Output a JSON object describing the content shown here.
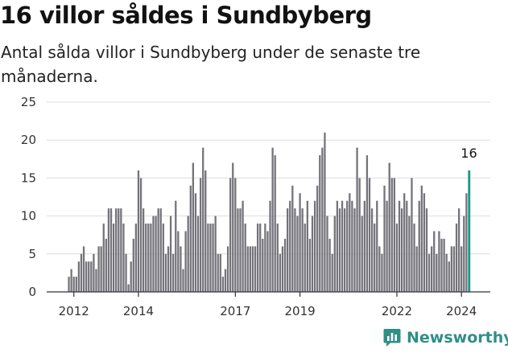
{
  "chart_data": {
    "type": "bar",
    "title": "16 villor såldes i Sundbyberg",
    "subtitle": "Antal sålda villor i Sundbyberg under de senaste tre månaderna.",
    "xlabel": "",
    "ylabel": "",
    "ylim": [
      0,
      25
    ],
    "yticks": [
      "0",
      "5",
      "10",
      "15",
      "20",
      "25"
    ],
    "ytick_values": [
      0,
      5,
      10,
      15,
      20,
      25
    ],
    "xticks": [
      "2012",
      "2014",
      "2017",
      "2019",
      "2022",
      "2024"
    ],
    "xtick_index": [
      2,
      28,
      67,
      93,
      132,
      158
    ],
    "grid": true,
    "start": "2012-01",
    "values": [
      2,
      3,
      2,
      2,
      4,
      5,
      6,
      4,
      4,
      4,
      5,
      3,
      6,
      6,
      9,
      7,
      11,
      11,
      9,
      11,
      11,
      11,
      9,
      5,
      1,
      4,
      7,
      9,
      16,
      15,
      11,
      9,
      9,
      9,
      10,
      10,
      11,
      11,
      9,
      5,
      6,
      10,
      5,
      12,
      8,
      6,
      3,
      8,
      10,
      14,
      17,
      13,
      10,
      15,
      19,
      16,
      9,
      9,
      9,
      10,
      5,
      5,
      2,
      3,
      6,
      15,
      17,
      15,
      11,
      11,
      12,
      9,
      6,
      6,
      6,
      6,
      9,
      9,
      7,
      9,
      8,
      12,
      19,
      18,
      9,
      5,
      6,
      7,
      11,
      12,
      14,
      11,
      10,
      13,
      11,
      9,
      12,
      7,
      10,
      12,
      14,
      18,
      19,
      21,
      10,
      7,
      5,
      10,
      12,
      11,
      12,
      11,
      12,
      13,
      12,
      11,
      19,
      15,
      10,
      12,
      18,
      15,
      11,
      9,
      12,
      6,
      5,
      14,
      12,
      17,
      15,
      15,
      9,
      12,
      11,
      13,
      12,
      10,
      15,
      9,
      6,
      12,
      14,
      13,
      11,
      5,
      6,
      8,
      5,
      8,
      7,
      7,
      5,
      4,
      6,
      6,
      9,
      11,
      6,
      10,
      13,
      16
    ],
    "last_value_label": "16",
    "colors": {
      "bars": "#74737a",
      "highlight": "#1a9a8c"
    }
  },
  "brand": {
    "name": "Newsworthy",
    "color": "#2f8f87"
  }
}
